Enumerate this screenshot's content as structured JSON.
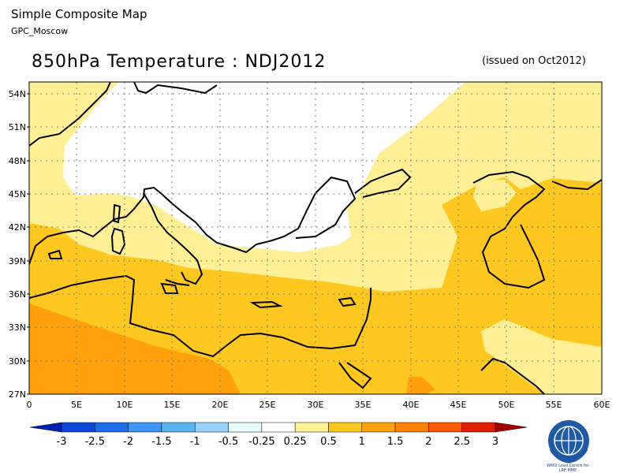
{
  "header": {
    "title": "Simple Composite Map",
    "subtitle": "GPC_Moscow"
  },
  "map": {
    "title": "850hPa Temperature : NDJ2012",
    "issued": "(issued on Oct2012)",
    "lat_labels": [
      "54N",
      "51N",
      "48N",
      "45N",
      "42N",
      "39N",
      "36N",
      "33N",
      "30N",
      "27N"
    ],
    "lon_labels": [
      "0",
      "5E",
      "10E",
      "15E",
      "20E",
      "25E",
      "30E",
      "35E",
      "40E",
      "45E",
      "50E",
      "55E",
      "60E"
    ]
  },
  "colorbar": {
    "labels": [
      "-3",
      "-2.5",
      "-2",
      "-1.5",
      "-1",
      "-0.5",
      "-0.25",
      "0.25",
      "0.5",
      "1",
      "1.5",
      "2",
      "2.5",
      "3"
    ],
    "colors": [
      "#0022b4",
      "#0f48d8",
      "#1e6eeb",
      "#3c96f5",
      "#5ab4f0",
      "#96d2fa",
      "#e6fcff",
      "#ffffff",
      "#fff096",
      "#ffc820",
      "#ffa00c",
      "#ff8200",
      "#ff5a00",
      "#e11e00",
      "#a50000"
    ]
  },
  "logo": {
    "text_line1": "WMO Lead Centre for",
    "text_line2": "LRF MME"
  }
}
